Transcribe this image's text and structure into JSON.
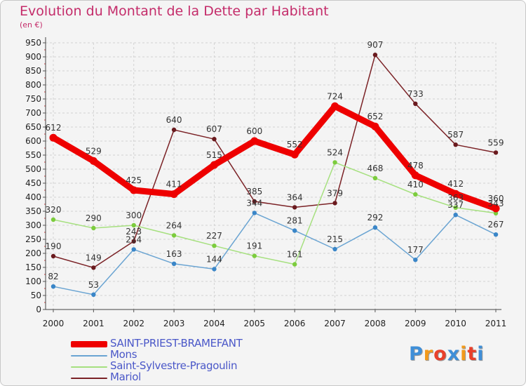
{
  "title": "Evolution du Montant de la Dette par Habitant",
  "subtitle": "(en €)",
  "logo": [
    "P",
    "r",
    "o",
    "x",
    "i",
    "t",
    "i"
  ],
  "logo_colors": [
    "#3f8fd8",
    "#f29a1b",
    "#e8402b",
    "#3f8fd8",
    "#f29a1b",
    "#e8402b",
    "#3f8fd8"
  ],
  "chart_data": {
    "type": "line",
    "title": "Evolution du Montant de la Dette par Habitant",
    "ylabel": "(en €)",
    "xlabel": "",
    "x": [
      "2000",
      "2001",
      "2002",
      "2003",
      "2004",
      "2005",
      "2006",
      "2007",
      "2008",
      "2009",
      "2010",
      "2011"
    ],
    "ylim": [
      0,
      950
    ],
    "yticks": [
      "0",
      "50",
      "100",
      "150",
      "200",
      "250",
      "300",
      "350",
      "400",
      "450",
      "500",
      "550",
      "600",
      "650",
      "700",
      "750",
      "800",
      "850",
      "900",
      "950"
    ],
    "grid": true,
    "legend_position": "bottom-left",
    "series": [
      {
        "name": "Mariol",
        "color": "#7b2226",
        "marker": "#6a1a1e",
        "weight": "thin",
        "values": [
          190,
          149,
          243,
          640,
          607,
          385,
          364,
          379,
          907,
          733,
          587,
          559
        ]
      },
      {
        "name": "Saint-Sylvestre-Pragoulin",
        "color": "#a6e07f",
        "marker": "#7ccc3d",
        "weight": "thin",
        "values": [
          320,
          290,
          300,
          264,
          227,
          191,
          161,
          524,
          468,
          410,
          363,
          343
        ]
      },
      {
        "name": "Mons",
        "color": "#6aa4d2",
        "marker": "#3a86c8",
        "weight": "thin",
        "values": [
          82,
          53,
          214,
          163,
          144,
          344,
          281,
          215,
          292,
          177,
          337,
          267
        ]
      },
      {
        "name": "SAINT-PRIEST-BRAMEFANT",
        "color": "#ee0000",
        "marker": "#ee0000",
        "weight": "thick",
        "values": [
          612,
          529,
          425,
          411,
          515,
          600,
          552,
          724,
          652,
          478,
          412,
          360
        ]
      }
    ]
  },
  "legend": [
    {
      "label": "SAINT-PRIEST-BRAMEFANT",
      "color": "#ee0000",
      "thick": true
    },
    {
      "label": "Mons",
      "color": "#6aa4d2",
      "thick": false
    },
    {
      "label": "Saint-Sylvestre-Pragoulin",
      "color": "#a6e07f",
      "thick": false
    },
    {
      "label": "Mariol",
      "color": "#7b2226",
      "thick": false
    }
  ]
}
